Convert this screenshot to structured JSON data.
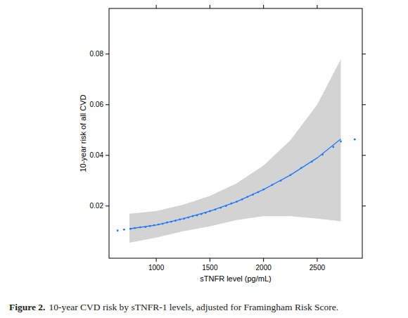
{
  "chart_data": {
    "type": "line",
    "x_label": "sTNFR level (pg/mL)",
    "y_label": "10-year risk of all CVD",
    "caption": {
      "label": "Figure 2.",
      "text": "10-year CVD risk by sTNFR-1 levels, adjusted for Framingham Risk Score."
    },
    "xlim": [
      560,
      2920
    ],
    "ylim": [
      -0.0006,
      0.098
    ],
    "xticks": [
      1000,
      1500,
      2000,
      2500
    ],
    "yticks": [
      0.02,
      0.04,
      0.06,
      0.08
    ],
    "grid": false,
    "x": [
      750,
      1000,
      1250,
      1500,
      1750,
      2000,
      2250,
      2500,
      2720
    ],
    "band": {
      "color": "#d3d3d3",
      "lower": [
        0.0055,
        0.0075,
        0.01,
        0.012,
        0.0145,
        0.016,
        0.016,
        0.015,
        0.014
      ],
      "upper": [
        0.017,
        0.018,
        0.0205,
        0.024,
        0.029,
        0.036,
        0.046,
        0.06,
        0.078
      ]
    },
    "series": [
      {
        "type": "line",
        "color": "#1e78ff",
        "line_style": "solid",
        "values": [
          0.011,
          0.0125,
          0.015,
          0.018,
          0.0217,
          0.0265,
          0.0322,
          0.039,
          0.0465
        ]
      },
      {
        "type": "scatter",
        "color": "#1e78ff",
        "marker": "dot",
        "x": [
          640,
          700,
          760,
          800,
          850,
          900,
          940,
          980,
          1020,
          1060,
          1100,
          1140,
          1180,
          1220,
          1260,
          1300,
          1340,
          1380,
          1420,
          1460,
          1500,
          1550,
          1600,
          1650,
          1700,
          1750,
          1800,
          1850,
          1900,
          1950,
          2000,
          2080,
          2160,
          2250,
          2350,
          2450,
          2550,
          2650,
          2720,
          2850
        ],
        "values": [
          0.0103,
          0.0107,
          0.011,
          0.0113,
          0.0116,
          0.0117,
          0.0121,
          0.0124,
          0.0127,
          0.013,
          0.0135,
          0.0138,
          0.0142,
          0.0147,
          0.015,
          0.0155,
          0.016,
          0.0163,
          0.0168,
          0.0173,
          0.018,
          0.0186,
          0.0193,
          0.02,
          0.021,
          0.0217,
          0.0226,
          0.0236,
          0.0245,
          0.0255,
          0.0265,
          0.0283,
          0.03,
          0.0322,
          0.035,
          0.0375,
          0.0403,
          0.0433,
          0.0455,
          0.0463
        ]
      }
    ]
  }
}
